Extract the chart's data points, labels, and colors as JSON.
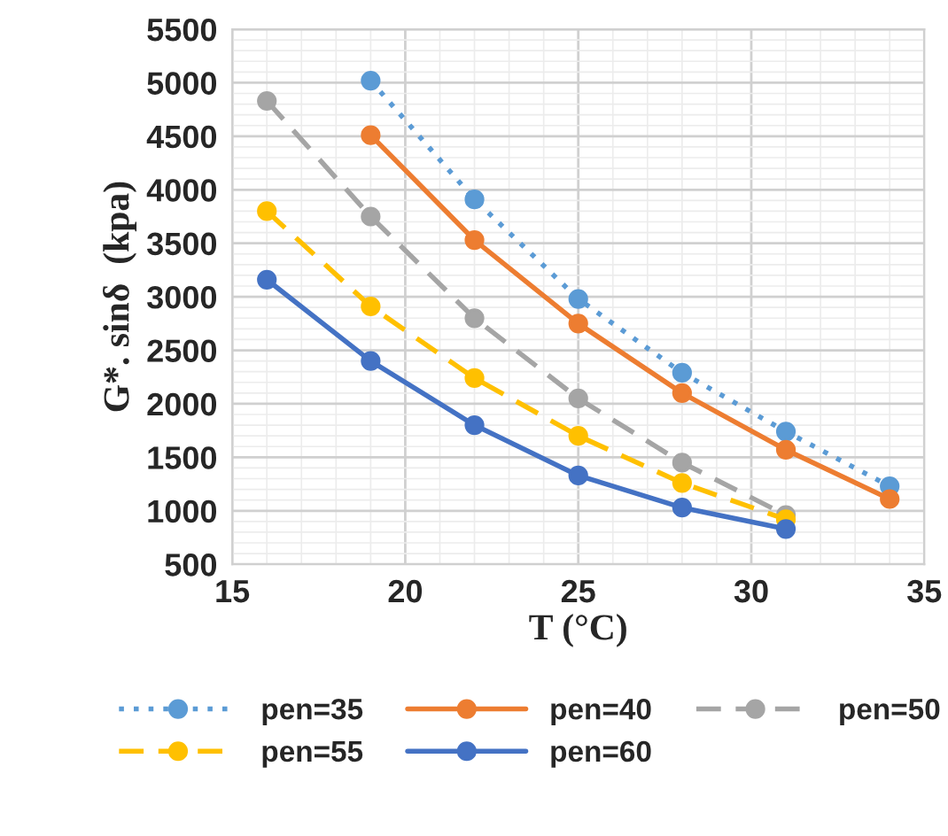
{
  "chart_data": {
    "type": "line",
    "xlabel": "T (°C)",
    "ylabel": "G*. sinδ  (kpa)",
    "xlim": [
      15,
      35
    ],
    "xticks": [
      15,
      20,
      25,
      30,
      35
    ],
    "ylim": [
      500,
      5500
    ],
    "yticks": [
      500,
      1000,
      1500,
      2000,
      2500,
      3000,
      3500,
      4000,
      4500,
      5000,
      5500
    ],
    "grid": true,
    "legend": "bottom",
    "marker": "circle",
    "series": [
      {
        "name": "pen=35",
        "color": "#5b9bd5",
        "line_style": "dotted",
        "x": [
          19,
          22,
          25,
          28,
          31,
          34
        ],
        "values": [
          5020,
          3910,
          2980,
          2290,
          1740,
          1230
        ]
      },
      {
        "name": "pen=40",
        "color": "#ed7d31",
        "line_style": "solid",
        "x": [
          19,
          22,
          25,
          28,
          31,
          34
        ],
        "values": [
          4510,
          3530,
          2750,
          2100,
          1570,
          1110
        ]
      },
      {
        "name": "pen=50",
        "color": "#a5a5a5",
        "line_style": "dashed",
        "x": [
          16,
          19,
          22,
          25,
          28,
          31
        ],
        "values": [
          4830,
          3750,
          2800,
          2050,
          1450,
          960
        ]
      },
      {
        "name": "pen=55",
        "color": "#ffc000",
        "line_style": "dashed",
        "x": [
          16,
          19,
          22,
          25,
          28,
          31
        ],
        "values": [
          3800,
          2910,
          2240,
          1700,
          1260,
          920
        ]
      },
      {
        "name": "pen=60",
        "color": "#4472c4",
        "line_style": "solid",
        "x": [
          16,
          19,
          22,
          25,
          28,
          31
        ],
        "values": [
          3160,
          2400,
          1800,
          1330,
          1030,
          830
        ]
      }
    ]
  }
}
